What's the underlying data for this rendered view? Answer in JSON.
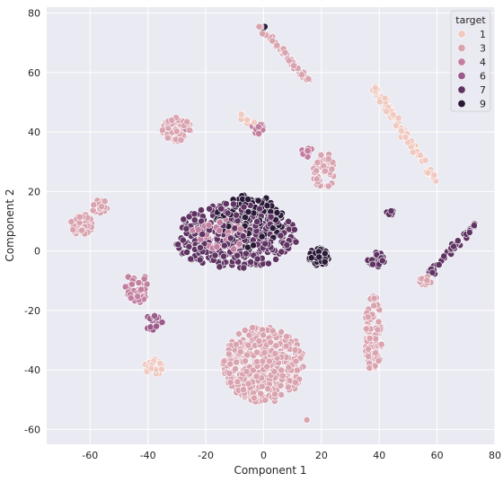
{
  "chart_data": {
    "type": "scatter",
    "title": "",
    "xlabel": "Component 1",
    "ylabel": "Component 2",
    "xlim": [
      -75,
      80
    ],
    "ylim": [
      -65,
      82
    ],
    "xticks": [
      -60,
      -40,
      -20,
      0,
      20,
      40,
      60,
      80
    ],
    "yticks": [
      -60,
      -40,
      -20,
      0,
      20,
      40,
      60,
      80
    ],
    "grid": true,
    "background": "#eaeaf2",
    "legend": {
      "title": "target",
      "placement": "top-right",
      "entries": [
        {
          "label": "1",
          "color": "#f0c9c0"
        },
        {
          "label": "3",
          "color": "#d9a4b0"
        },
        {
          "label": "4",
          "color": "#c27fa0"
        },
        {
          "label": "6",
          "color": "#9a5b8a"
        },
        {
          "label": "7",
          "color": "#5f3463"
        },
        {
          "label": "9",
          "color": "#2a1a38"
        }
      ]
    },
    "clusters": [
      {
        "label": "3",
        "shape": "blob",
        "center": [
          0,
          -38
        ],
        "radius": [
          14,
          13
        ],
        "count": 420
      },
      {
        "label": "7",
        "shape": "blob",
        "center": [
          -10,
          5
        ],
        "radius": [
          22,
          11
        ],
        "count": 360
      },
      {
        "label": "9",
        "shape": "blob",
        "center": [
          -5,
          10
        ],
        "radius": [
          12,
          9
        ],
        "count": 160
      },
      {
        "label": "4",
        "shape": "blob",
        "center": [
          -15,
          5
        ],
        "radius": [
          10,
          6
        ],
        "count": 70
      },
      {
        "label": "3",
        "shape": "blob",
        "center": [
          -30,
          41
        ],
        "radius": [
          5,
          4
        ],
        "count": 70
      },
      {
        "label": "3",
        "shape": "blob",
        "center": [
          -63,
          9
        ],
        "radius": [
          4,
          3.5
        ],
        "count": 45
      },
      {
        "label": "3",
        "shape": "blob",
        "center": [
          -57,
          15
        ],
        "radius": [
          3,
          2.5
        ],
        "count": 22
      },
      {
        "label": "9",
        "shape": "blob",
        "center": [
          19,
          -2
        ],
        "radius": [
          3.5,
          3
        ],
        "count": 45
      },
      {
        "label": "7",
        "shape": "blob",
        "center": [
          39,
          -3
        ],
        "radius": [
          3,
          2.5
        ],
        "count": 30
      },
      {
        "label": "4",
        "shape": "blob",
        "center": [
          -44,
          -12
        ],
        "radius": [
          4,
          6
        ],
        "count": 50
      },
      {
        "label": "1",
        "shape": "blob",
        "center": [
          -38,
          -39
        ],
        "radius": [
          3,
          3
        ],
        "count": 25
      },
      {
        "label": "3",
        "shape": "blob",
        "center": [
          38,
          -28
        ],
        "radius": [
          3,
          13
        ],
        "count": 110
      },
      {
        "label": "3",
        "shape": "blob",
        "center": [
          21,
          27
        ],
        "radius": [
          4,
          6
        ],
        "count": 50
      },
      {
        "label": "4",
        "shape": "blob",
        "center": [
          -2,
          41
        ],
        "radius": [
          2.5,
          2
        ],
        "count": 14
      },
      {
        "label": "1",
        "shape": "line",
        "from": [
          38,
          55
        ],
        "to": [
          60,
          23
        ],
        "count": 70
      },
      {
        "label": "3",
        "shape": "line",
        "from": [
          -2,
          76
        ],
        "to": [
          16,
          57
        ],
        "count": 45
      },
      {
        "label": "7",
        "shape": "line",
        "from": [
          57,
          -8
        ],
        "to": [
          73,
          9
        ],
        "count": 40
      },
      {
        "label": "3",
        "shape": "blob",
        "center": [
          56,
          -10
        ],
        "radius": [
          2,
          2
        ],
        "count": 12
      },
      {
        "label": "6",
        "shape": "blob",
        "center": [
          -38,
          -24
        ],
        "radius": [
          3,
          3
        ],
        "count": 15
      },
      {
        "label": "1",
        "shape": "line",
        "from": [
          -8,
          46
        ],
        "to": [
          -2,
          42
        ],
        "count": 10
      },
      {
        "label": "4",
        "shape": "blob",
        "center": [
          15,
          33
        ],
        "radius": [
          2,
          2
        ],
        "count": 12
      },
      {
        "label": "7",
        "shape": "blob",
        "center": [
          44,
          13
        ],
        "radius": [
          1.5,
          1
        ],
        "count": 6
      },
      {
        "label": "4",
        "shape": "blob",
        "center": [
          -26,
          41
        ],
        "radius": [
          1,
          1
        ],
        "count": 4
      },
      {
        "label": "9",
        "shape": "blob",
        "center": [
          0,
          75
        ],
        "radius": [
          0.8,
          0.8
        ],
        "count": 3
      },
      {
        "label": "3",
        "shape": "blob",
        "center": [
          15,
          -57
        ],
        "radius": [
          0.5,
          0.5
        ],
        "count": 2
      }
    ]
  }
}
